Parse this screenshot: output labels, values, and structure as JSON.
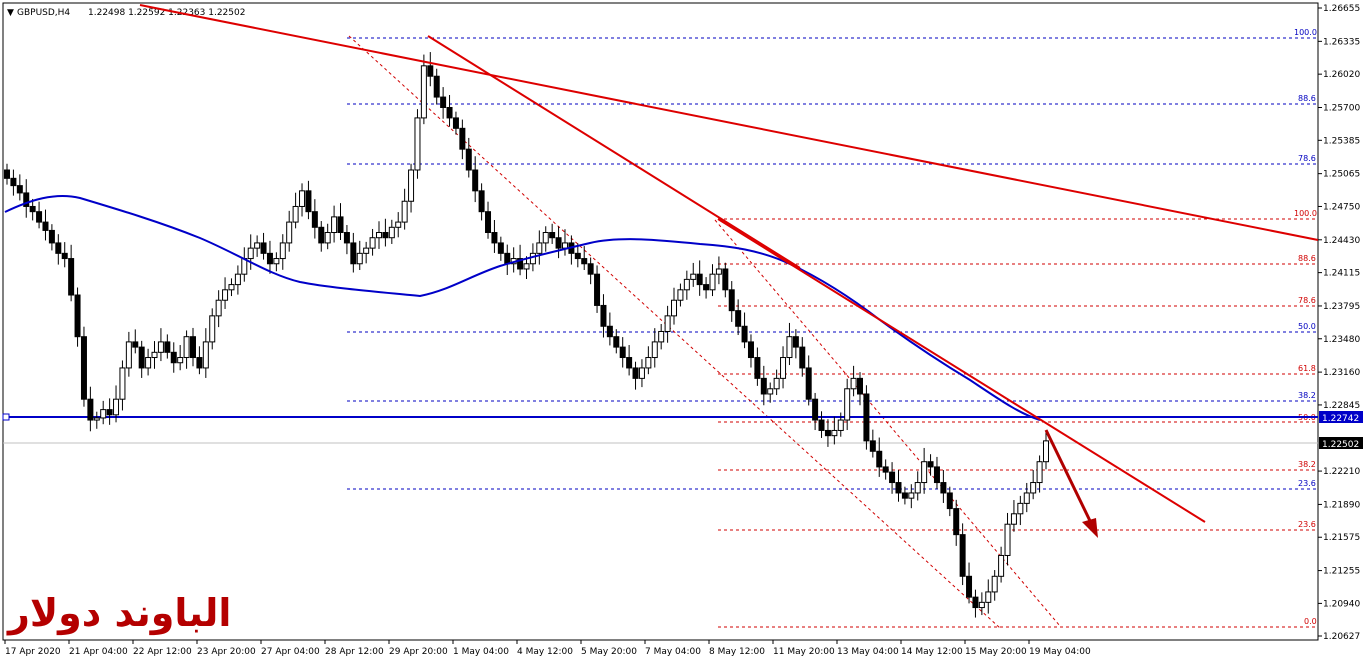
{
  "header": {
    "symbol": "GBPUSD,H4",
    "ohlc": "1.22498 1.22592 1.22363 1.22502"
  },
  "watermark": "الباوند دولار",
  "chart_data": {
    "type": "candlestick",
    "ylim": [
      1.20627,
      1.26655
    ],
    "price_ticks": [
      "1.26655",
      "1.26335",
      "1.26020",
      "1.25700",
      "1.25385",
      "1.25065",
      "1.24750",
      "1.24430",
      "1.24115",
      "1.23795",
      "1.23480",
      "1.23160",
      "1.22845",
      "1.22210",
      "1.21890",
      "1.21575",
      "1.21255",
      "1.20940",
      "1.20627"
    ],
    "time_labels": [
      "17 Apr 2020",
      "21 Apr 04:00",
      "22 Apr 12:00",
      "23 Apr 20:00",
      "27 Apr 04:00",
      "28 Apr 12:00",
      "29 Apr 20:00",
      "1 May 04:00",
      "4 May 12:00",
      "5 May 20:00",
      "7 May 04:00",
      "8 May 12:00",
      "11 May 20:00",
      "13 May 04:00",
      "14 May 12:00",
      "15 May 20:00",
      "19 May 04:00"
    ],
    "current_price": "1.22502",
    "horizontal_level": "1.22742",
    "moving_average_color": "#0000c8",
    "trendline_color": "#dd0000",
    "fib_blue_labels": [
      "100.0",
      "88.6",
      "78.6",
      "50.0",
      "38.2",
      "23.6"
    ],
    "fib_red_upper_labels": [
      "100.0",
      "88.6",
      "78.6",
      "61.8",
      "50.0"
    ],
    "fib_red_lower_labels": [
      "38.2",
      "23.6",
      "0.0"
    ],
    "closes": [
      1.2502,
      1.2495,
      1.2488,
      1.2475,
      1.247,
      1.246,
      1.2452,
      1.244,
      1.243,
      1.2425,
      1.239,
      1.235,
      1.229,
      1.227,
      1.2272,
      1.228,
      1.2275,
      1.229,
      1.232,
      1.2345,
      1.234,
      1.232,
      1.233,
      1.2335,
      1.2345,
      1.2335,
      1.2325,
      1.233,
      1.235,
      1.233,
      1.232,
      1.2345,
      1.237,
      1.2385,
      1.2395,
      1.24,
      1.241,
      1.2425,
      1.2435,
      1.244,
      1.243,
      1.242,
      1.2425,
      1.244,
      1.246,
      1.2475,
      1.249,
      1.247,
      1.2455,
      1.244,
      1.245,
      1.2465,
      1.245,
      1.244,
      1.242,
      1.243,
      1.2435,
      1.2445,
      1.245,
      1.2445,
      1.2455,
      1.246,
      1.248,
      1.251,
      1.256,
      1.261,
      1.26,
      1.258,
      1.257,
      1.256,
      1.255,
      1.253,
      1.251,
      1.249,
      1.247,
      1.245,
      1.244,
      1.243,
      1.242,
      1.2425,
      1.2415,
      1.242,
      1.243,
      1.244,
      1.245,
      1.2445,
      1.2435,
      1.244,
      1.243,
      1.2425,
      1.242,
      1.241,
      1.238,
      1.236,
      1.235,
      1.234,
      1.233,
      1.232,
      1.231,
      1.232,
      1.233,
      1.2345,
      1.2355,
      1.237,
      1.2385,
      1.2395,
      1.2405,
      1.241,
      1.24,
      1.2395,
      1.241,
      1.2415,
      1.2395,
      1.2375,
      1.236,
      1.2345,
      1.233,
      1.231,
      1.2295,
      1.23,
      1.231,
      1.233,
      1.235,
      1.234,
      1.232,
      1.229,
      1.227,
      1.226,
      1.2255,
      1.226,
      1.227,
      1.23,
      1.231,
      1.2295,
      1.225,
      1.224,
      1.2225,
      1.222,
      1.221,
      1.22,
      1.2195,
      1.22,
      1.221,
      1.223,
      1.2225,
      1.221,
      1.22,
      1.2185,
      1.216,
      1.212,
      1.21,
      1.209,
      1.2095,
      1.2105,
      1.212,
      1.214,
      1.217,
      1.218,
      1.219,
      1.22,
      1.221,
      1.223,
      1.225
    ]
  }
}
